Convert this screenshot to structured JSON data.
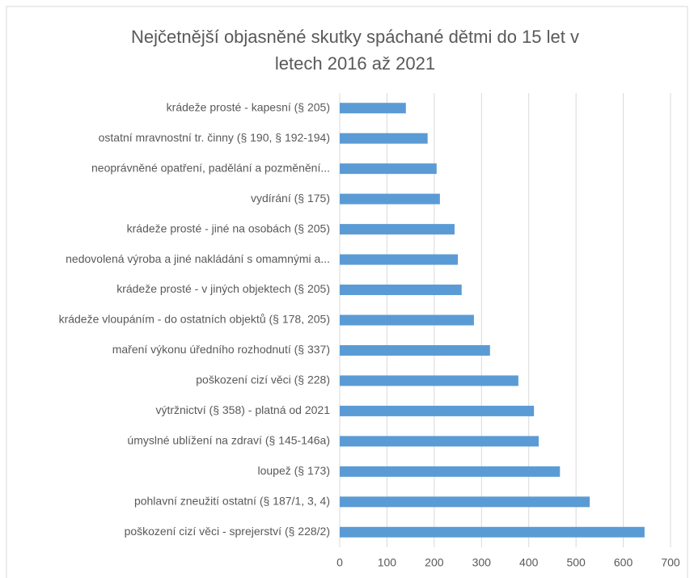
{
  "chart_data": {
    "type": "bar",
    "orientation": "horizontal",
    "title": "Nejčetnější objasněné skutky spáchané dětmi do 15 let v letech 2016 až 2021",
    "categories": [
      "krádeže prosté - kapesní (§ 205)",
      "ostatní mravnostní tr. činny (§ 190, § 192-194)",
      "neoprávněné opatření, padělání a pozměnění...",
      "vydírání (§ 175)",
      "krádeže prosté - jiné na osobách (§ 205)",
      "nedovolená výroba a jiné nakládání s omamnými a...",
      "krádeže prosté - v jiných objektech (§ 205)",
      "krádeže vloupáním - do ostatních objektů (§ 178, 205)",
      "maření výkonu úředního rozhodnutí (§ 337)",
      "poškození cizí věci (§ 228)",
      "výtržnictví (§ 358) - platná od 2021",
      "úmyslné ublížení na zdraví (§ 145-146a)",
      "loupež (§ 173)",
      "pohlavní zneužití ostatní (§ 187/1, 3, 4)",
      "poškození cizí věci - sprejerství (§ 228/2)"
    ],
    "values": [
      140,
      186,
      205,
      212,
      243,
      250,
      258,
      284,
      318,
      378,
      411,
      421,
      466,
      529,
      645
    ],
    "color": "#5b9bd5",
    "xlim": [
      0,
      700
    ],
    "xticks": [
      0,
      100,
      200,
      300,
      400,
      500,
      600,
      700
    ],
    "grid": true
  }
}
